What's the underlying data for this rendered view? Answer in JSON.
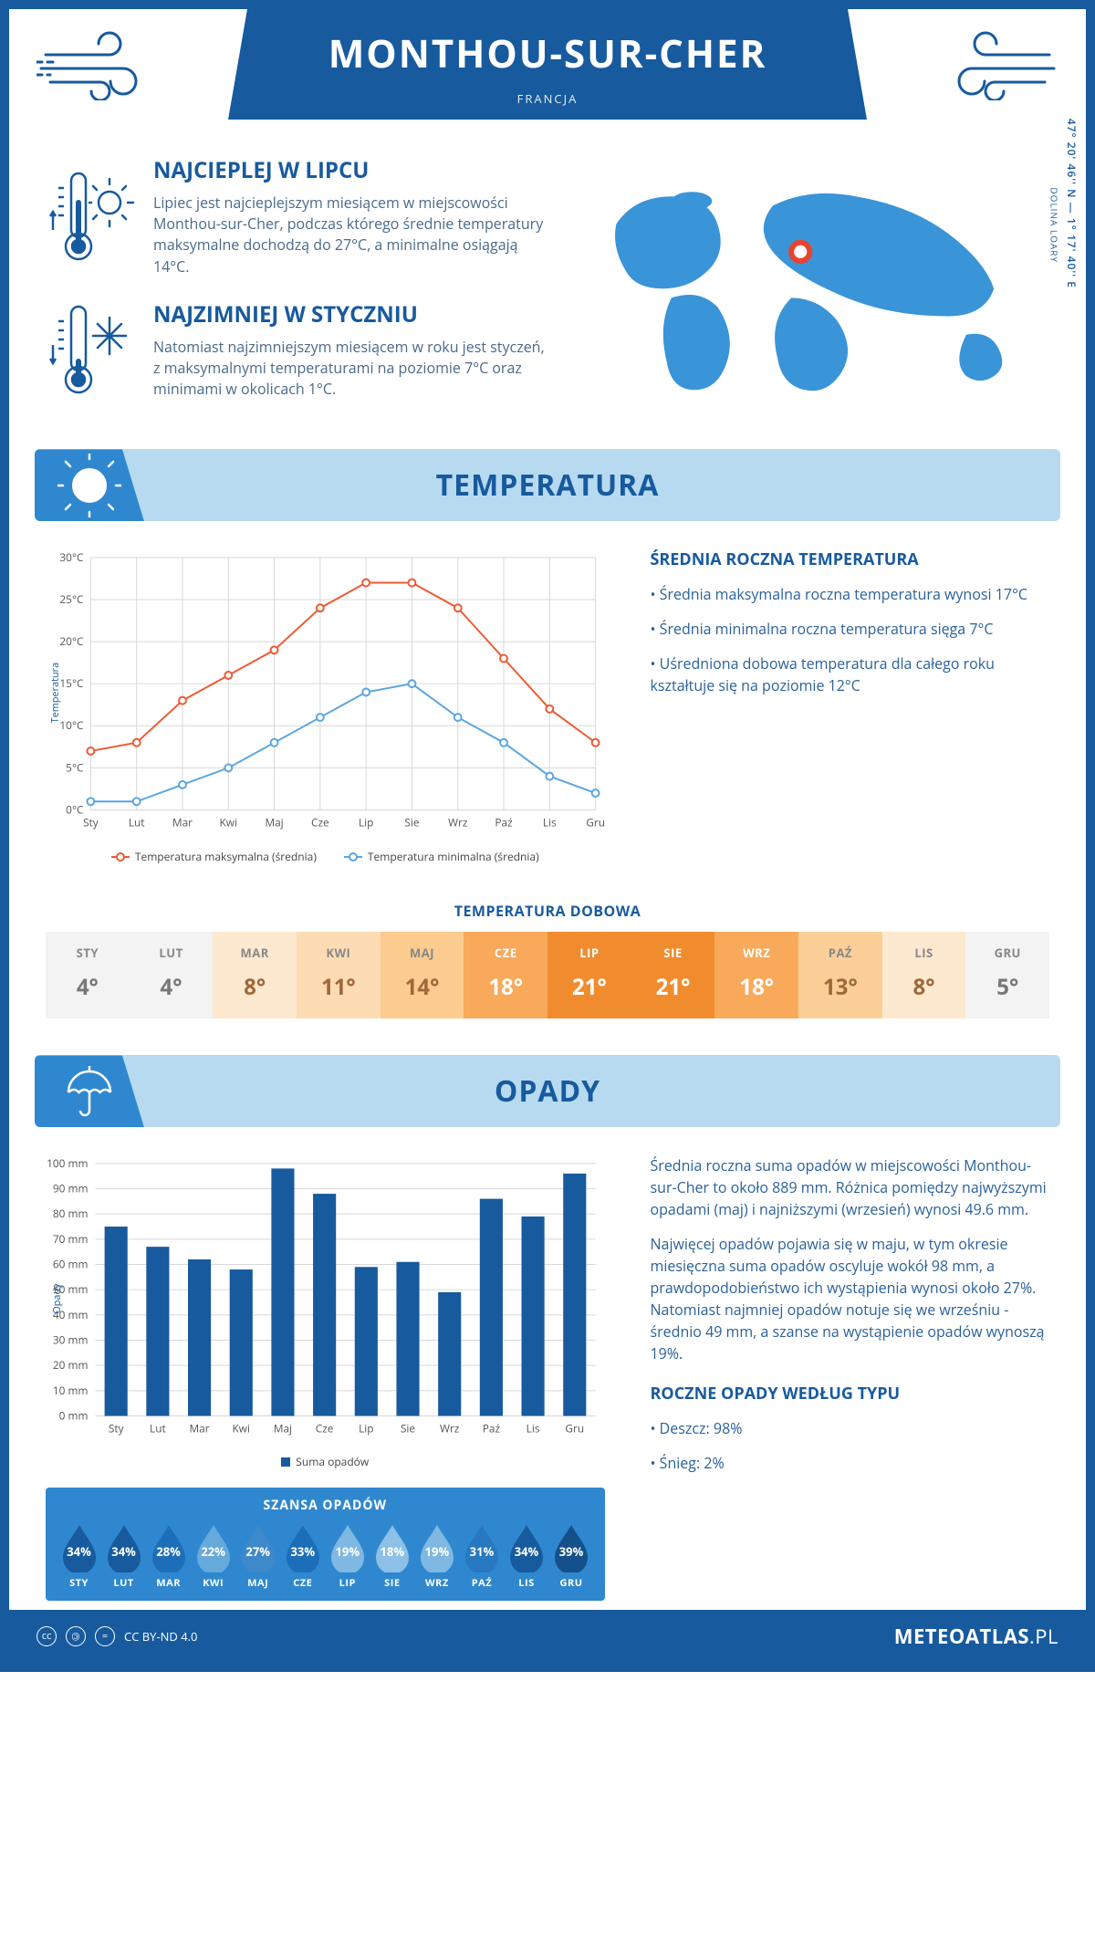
{
  "header": {
    "title": "MONTHOU-SUR-CHER",
    "subtitle": "FRANCJA"
  },
  "coords": "47° 20' 46'' N — 1° 17' 40'' E",
  "region": "DOLINA LOARY",
  "colors": {
    "primary": "#175a9e",
    "banner_bg": "#b7daf1",
    "banner_icon_bg": "#2f88cf",
    "max_line": "#ed5a32",
    "min_line": "#5aa6e0",
    "bar_fill": "#175a9e",
    "grid": "#d8d8d8",
    "body_text": "#4a6a8a"
  },
  "intro": {
    "hot": {
      "title": "NAJCIEPLEJ W LIPCU",
      "text": "Lipiec jest najcieplejszym miesiącem w miejscowości Monthou-sur-Cher, podczas którego średnie temperatury maksymalne dochodzą do 27°C, a minimalne osiągają 14°C."
    },
    "cold": {
      "title": "NAJZIMNIEJ W STYCZNIU",
      "text": "Natomiast najzimniejszym miesiącem w roku jest styczeń, z maksymalnymi temperaturami na poziomie 7°C oraz minimami w okolicach 1°C."
    }
  },
  "temp_section": {
    "banner": "TEMPERATURA",
    "chart": {
      "type": "line",
      "months": [
        "Sty",
        "Lut",
        "Mar",
        "Kwi",
        "Maj",
        "Cze",
        "Lip",
        "Sie",
        "Wrz",
        "Paź",
        "Lis",
        "Gru"
      ],
      "max_values": [
        7,
        8,
        13,
        16,
        19,
        24,
        27,
        27,
        24,
        18,
        12,
        8
      ],
      "min_values": [
        1,
        1,
        3,
        5,
        8,
        11,
        14,
        15,
        11,
        8,
        4,
        2
      ],
      "ylim": [
        0,
        30
      ],
      "ytick_step": 5,
      "ylabel": "Temperatura",
      "y_unit": "°C",
      "max_color": "#ed5a32",
      "min_color": "#5aa6e0",
      "line_width": 2,
      "marker_size": 4,
      "grid_color": "#d8d8d8",
      "background": "#ffffff",
      "legend": {
        "max": "Temperatura maksymalna (średnia)",
        "min": "Temperatura minimalna (średnia)"
      }
    },
    "avg_title": "ŚREDNIA ROCZNA TEMPERATURA",
    "bullets": [
      "Średnia maksymalna roczna temperatura wynosi 17°C",
      "Średnia minimalna roczna temperatura sięga 7°C",
      "Uśredniona dobowa temperatura dla całego roku kształtuje się na poziomie 12°C"
    ]
  },
  "daily": {
    "title": "TEMPERATURA DOBOWA",
    "months": [
      "STY",
      "LUT",
      "MAR",
      "KWI",
      "MAJ",
      "CZE",
      "LIP",
      "SIE",
      "WRZ",
      "PAŹ",
      "LIS",
      "GRU"
    ],
    "values": [
      "4°",
      "4°",
      "8°",
      "11°",
      "14°",
      "18°",
      "21°",
      "21°",
      "18°",
      "13°",
      "8°",
      "5°"
    ],
    "cell_colors": [
      "#f3f3f3",
      "#f3f3f3",
      "#fde9cf",
      "#fddcb4",
      "#fccb8f",
      "#f9a95a",
      "#f18c2e",
      "#f18c2e",
      "#f9a95a",
      "#fccf98",
      "#fde9cf",
      "#f3f3f3"
    ],
    "value_colors": [
      "#777",
      "#777",
      "#a0683a",
      "#a0683a",
      "#a0683a",
      "#fff",
      "#fff",
      "#fff",
      "#fff",
      "#a0683a",
      "#a0683a",
      "#777"
    ]
  },
  "precip_section": {
    "banner": "OPADY",
    "chart": {
      "type": "bar",
      "months": [
        "Sty",
        "Lut",
        "Mar",
        "Kwi",
        "Maj",
        "Cze",
        "Lip",
        "Sie",
        "Wrz",
        "Paź",
        "Lis",
        "Gru"
      ],
      "values": [
        75,
        67,
        62,
        58,
        98,
        88,
        59,
        61,
        49,
        86,
        79,
        96
      ],
      "ylim": [
        0,
        100
      ],
      "ytick_step": 10,
      "ylabel": "Opady",
      "y_unit": " mm",
      "bar_color": "#175a9e",
      "bar_width": 0.55,
      "grid_color": "#d8d8d8",
      "legend": "Suma opadów"
    },
    "para1": "Średnia roczna suma opadów w miejscowości Monthou-sur-Cher to około 889 mm. Różnica pomiędzy najwyższymi opadami (maj) i najniższymi (wrzesień) wynosi 49.6 mm.",
    "para2": "Najwięcej opadów pojawia się w maju, w tym okresie miesięczna suma opadów oscyluje wokół 98 mm, a prawdopodobieństwo ich wystąpienia wynosi około 27%. Natomiast najmniej opadów notuje się we wrześniu - średnio 49 mm, a szanse na wystąpienie opadów wynoszą 19%.",
    "type_title": "ROCZNE OPADY WEDŁUG TYPU",
    "type_bullets": [
      "Deszcz: 98%",
      "Śnieg: 2%"
    ]
  },
  "chance": {
    "title": "SZANSA OPADÓW",
    "months": [
      "STY",
      "LUT",
      "MAR",
      "KWI",
      "MAJ",
      "CZE",
      "LIP",
      "SIE",
      "WRZ",
      "PAŹ",
      "LIS",
      "GRU"
    ],
    "values": [
      "34%",
      "34%",
      "28%",
      "22%",
      "27%",
      "33%",
      "19%",
      "18%",
      "19%",
      "31%",
      "34%",
      "39%"
    ],
    "drop_colors": [
      "#175a9e",
      "#175a9e",
      "#1d6eb8",
      "#66a9db",
      "#3d89c9",
      "#1d6eb8",
      "#7fb8e2",
      "#8cc0e6",
      "#7fb8e2",
      "#2679c1",
      "#175a9e",
      "#145089"
    ]
  },
  "footer": {
    "license": "CC BY-ND 4.0",
    "site_main": "METEOATLAS",
    "site_tld": ".PL"
  }
}
